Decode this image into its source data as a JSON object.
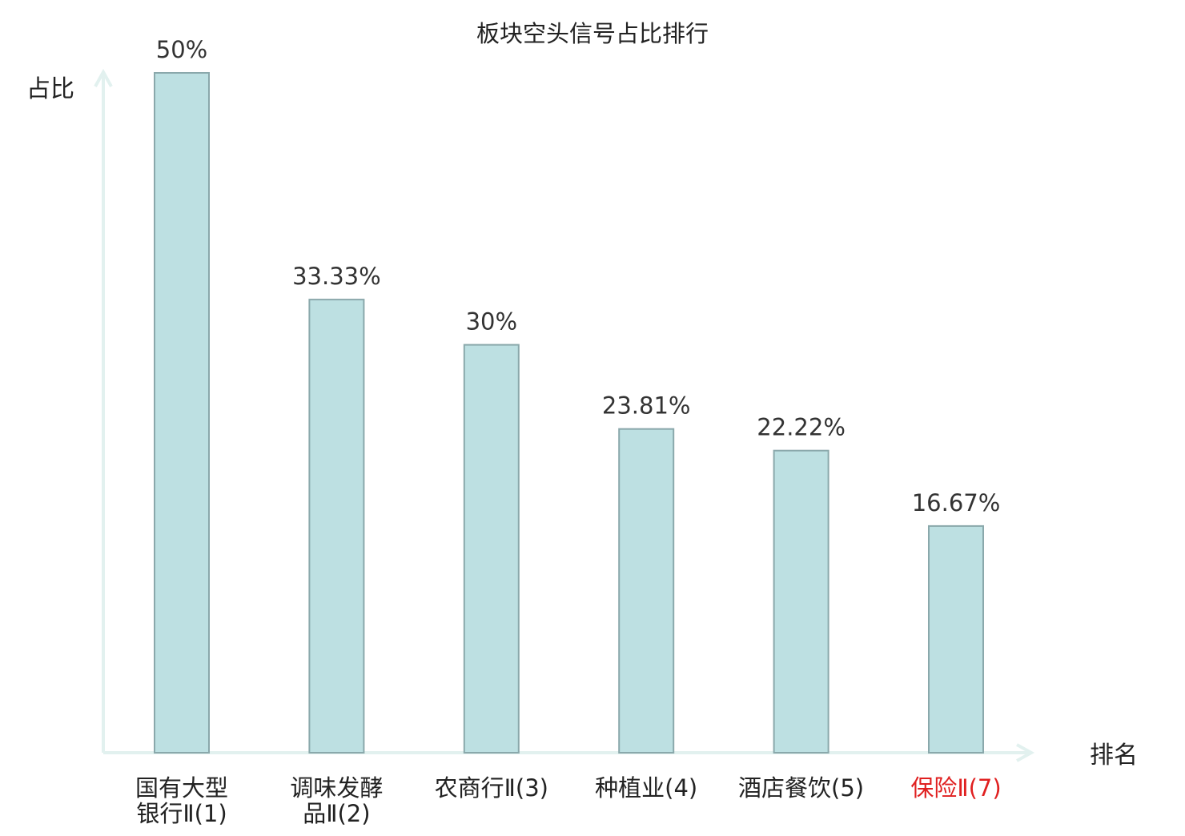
{
  "chart_data": {
    "type": "bar",
    "title": "板块空头信号占比排行",
    "xlabel": "排名",
    "ylabel": "占比",
    "categories": [
      [
        "国有大型",
        "银行Ⅱ(1)"
      ],
      [
        "调味发酵",
        "品Ⅱ(2)"
      ],
      [
        "农商行Ⅱ(3)"
      ],
      [
        "种植业(4)"
      ],
      [
        "酒店餐饮(5)"
      ],
      [
        "保险Ⅱ(7)"
      ]
    ],
    "values": [
      50,
      33.33,
      30,
      23.81,
      22.22,
      16.67
    ],
    "value_labels": [
      "50%",
      "33.33%",
      "30%",
      "23.81%",
      "22.22%",
      "16.67%"
    ],
    "highlighted_category_index": 5,
    "ylim": [
      0,
      50
    ],
    "grid": false,
    "legend": "none"
  },
  "colors": {
    "bar_fill": "#bde0e2",
    "bar_stroke": "#8aa8ab",
    "axis": "#e2f1ef",
    "text": "#222222",
    "value_label": "#333333",
    "highlight": "#e02020"
  }
}
